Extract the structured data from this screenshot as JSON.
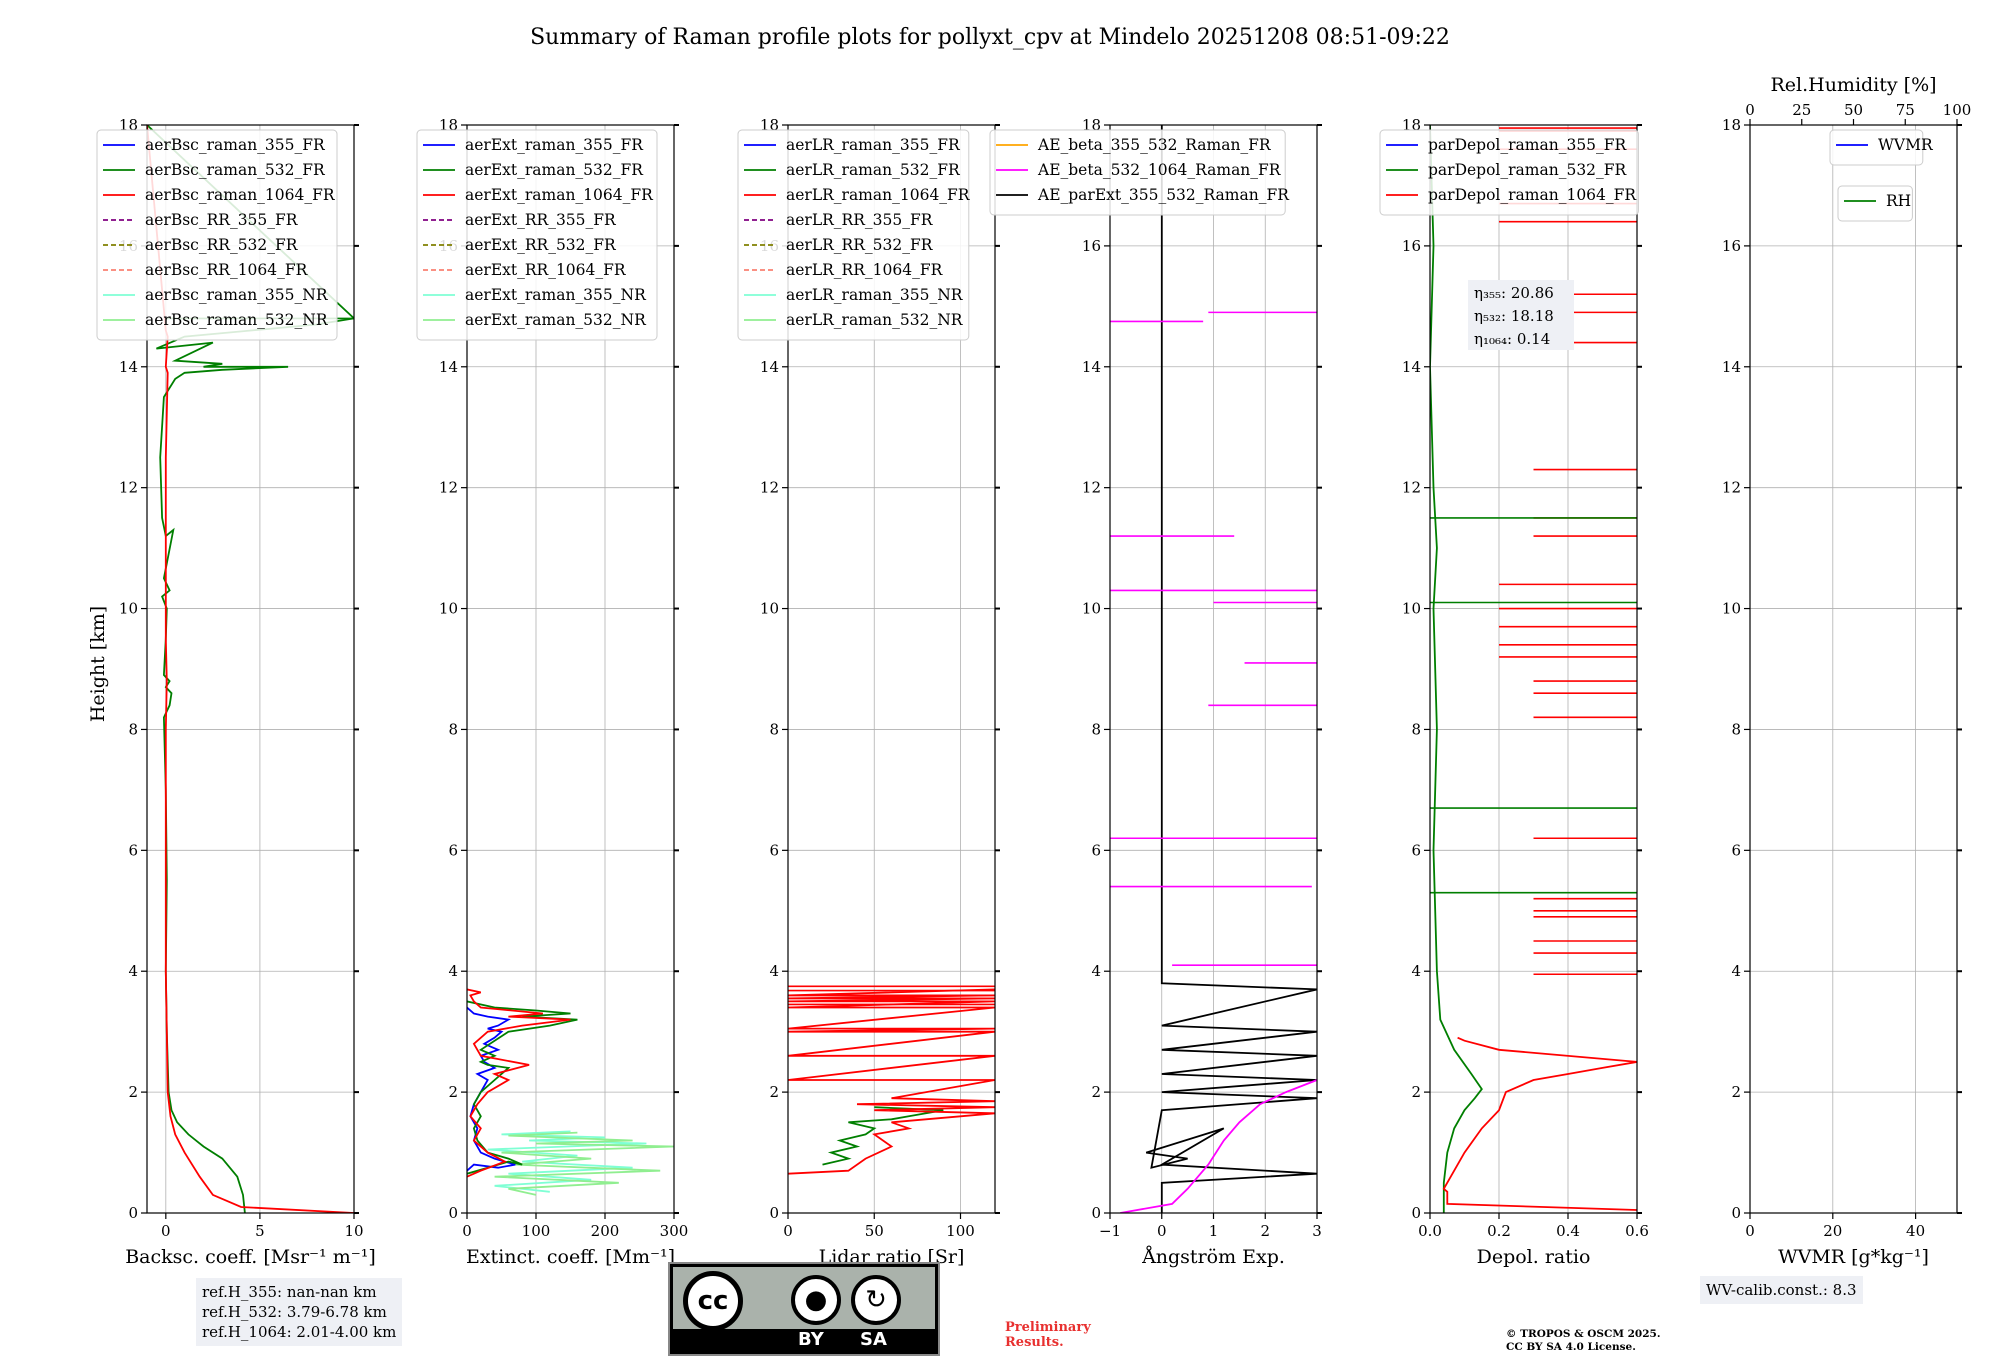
{
  "figure_title": "Summary of Raman profile plots for pollyxt_cpv at Mindelo 20251208 08:51-09:22",
  "colors": {
    "blue": "#0000ff",
    "green": "#007f00",
    "red": "#ff0000",
    "purple": "#800080",
    "olive": "#808000",
    "salmon": "#fa8072",
    "cyan": "#7fffd4",
    "lightgreen": "#90ee90",
    "orange": "#ffa500",
    "magenta": "#ff00ff",
    "black": "#000000"
  },
  "shared_y": {
    "label": "Height [km]",
    "range": [
      0,
      18
    ],
    "ticks": [
      "0",
      "2",
      "4",
      "6",
      "8",
      "10",
      "12",
      "14",
      "16",
      "18"
    ]
  },
  "chart_data": [
    {
      "id": "bsc",
      "type": "line",
      "xlabel": "Backsc. coeff. [Msr⁻¹ m⁻¹]",
      "xlim": [
        -1,
        10
      ],
      "xticks": [
        0,
        5,
        10
      ],
      "xtick_labels": [
        "0",
        "5",
        "10"
      ],
      "legend": [
        {
          "name": "aerBsc_raman_355_FR",
          "color": "blue",
          "dash": false
        },
        {
          "name": "aerBsc_raman_532_FR",
          "color": "green",
          "dash": false
        },
        {
          "name": "aerBsc_raman_1064_FR",
          "color": "red",
          "dash": false
        },
        {
          "name": "aerBsc_RR_355_FR",
          "color": "purple",
          "dash": true
        },
        {
          "name": "aerBsc_RR_532_FR",
          "color": "olive",
          "dash": true
        },
        {
          "name": "aerBsc_RR_1064_FR",
          "color": "salmon",
          "dash": true
        },
        {
          "name": "aerBsc_raman_355_NR",
          "color": "cyan",
          "dash": false
        },
        {
          "name": "aerBsc_raman_532_NR",
          "color": "lightgreen",
          "dash": false
        }
      ],
      "series": [
        {
          "name": "aerBsc_raman_532_FR",
          "color": "green",
          "x": [
            4.2,
            4.1,
            3.8,
            3.0,
            2.0,
            1.2,
            0.6,
            0.3,
            0.15,
            0.05,
            0.0,
            0.05,
            0.0,
            -0.1,
            0.2,
            0.3,
            0.0,
            0.1,
            0.2,
            -0.1,
            0.0,
            0.05,
            -0.2,
            0.2,
            -0.1,
            0.4,
            0.0,
            -0.2,
            -0.3,
            -0.1,
            0.5,
            1.0,
            3.0,
            6.5,
            2.0,
            3.0,
            0.5,
            2.5,
            -0.5,
            1.0,
            8.0,
            10.0,
            -1.0
          ],
          "y": [
            0.0,
            0.3,
            0.6,
            0.9,
            1.1,
            1.3,
            1.5,
            1.7,
            2.0,
            3.0,
            4.0,
            5.5,
            7.0,
            8.2,
            8.4,
            8.6,
            8.7,
            8.75,
            8.8,
            8.9,
            9.5,
            10.0,
            10.2,
            10.3,
            10.5,
            11.3,
            11.2,
            11.5,
            12.5,
            13.5,
            13.8,
            13.9,
            13.95,
            14.0,
            14.0,
            14.05,
            14.1,
            14.4,
            14.3,
            14.5,
            14.7,
            14.8,
            18.0
          ]
        },
        {
          "name": "aerBsc_raman_1064_FR",
          "color": "red",
          "x": [
            10.0,
            4.0,
            2.5,
            1.8,
            1.0,
            0.5,
            0.25,
            0.1,
            0.05,
            0.0,
            0.0,
            0.0,
            0.05,
            0.0,
            0.0,
            0.0,
            0.1,
            0.0,
            0.1,
            0.0,
            -1.0
          ],
          "y": [
            0.0,
            0.1,
            0.3,
            0.6,
            1.0,
            1.3,
            1.6,
            2.0,
            3.0,
            4.0,
            6.0,
            8.0,
            8.8,
            9.5,
            11.0,
            12.5,
            13.9,
            14.0,
            14.5,
            14.6,
            18.0
          ]
        }
      ]
    },
    {
      "id": "ext",
      "type": "line",
      "xlabel": "Extinct. coeff. [Mm⁻¹]",
      "xlim": [
        0,
        300
      ],
      "xticks": [
        0,
        100,
        200,
        300
      ],
      "xtick_labels": [
        "0",
        "100",
        "200",
        "300"
      ],
      "legend": [
        {
          "name": "aerExt_raman_355_FR",
          "color": "blue",
          "dash": false
        },
        {
          "name": "aerExt_raman_532_FR",
          "color": "green",
          "dash": false
        },
        {
          "name": "aerExt_raman_1064_FR",
          "color": "red",
          "dash": false
        },
        {
          "name": "aerExt_RR_355_FR",
          "color": "purple",
          "dash": true
        },
        {
          "name": "aerExt_RR_532_FR",
          "color": "olive",
          "dash": true
        },
        {
          "name": "aerExt_RR_1064_FR",
          "color": "salmon",
          "dash": true
        },
        {
          "name": "aerExt_raman_355_NR",
          "color": "cyan",
          "dash": false
        },
        {
          "name": "aerExt_raman_532_NR",
          "color": "lightgreen",
          "dash": false
        }
      ],
      "series": [
        {
          "name": "aerExt_raman_355_NR",
          "color": "cyan",
          "x": [
            120,
            40,
            180,
            60,
            240,
            80,
            160,
            30,
            260,
            90,
            200,
            50,
            150
          ],
          "y": [
            0.35,
            0.45,
            0.55,
            0.65,
            0.75,
            0.85,
            0.95,
            1.05,
            1.15,
            1.2,
            1.25,
            1.3,
            1.35
          ]
        },
        {
          "name": "aerExt_raman_532_NR",
          "color": "lightgreen",
          "x": [
            100,
            60,
            220,
            40,
            280,
            70,
            180,
            50,
            300,
            100,
            240,
            60,
            160
          ],
          "y": [
            0.3,
            0.4,
            0.5,
            0.6,
            0.7,
            0.8,
            0.9,
            1.0,
            1.1,
            1.15,
            1.2,
            1.28,
            1.33
          ]
        },
        {
          "name": "aerExt_raman_355_FR",
          "color": "blue",
          "x": [
            0,
            10,
            45,
            70,
            40,
            20,
            10,
            15,
            5,
            10,
            20,
            30,
            15,
            40,
            25,
            20,
            45,
            35,
            25,
            40,
            50,
            30,
            45,
            60,
            30,
            10,
            0
          ],
          "y": [
            0.7,
            0.8,
            0.75,
            0.8,
            0.9,
            1.0,
            1.2,
            1.4,
            1.6,
            1.8,
            2.0,
            2.2,
            2.3,
            2.4,
            2.5,
            2.6,
            2.7,
            2.75,
            2.8,
            2.9,
            3.0,
            3.05,
            3.1,
            3.2,
            3.25,
            3.3,
            3.4
          ]
        },
        {
          "name": "aerExt_raman_532_FR",
          "color": "green",
          "x": [
            0,
            30,
            60,
            80,
            60,
            30,
            15,
            10,
            20,
            10,
            20,
            40,
            60,
            30,
            20,
            40,
            20,
            60,
            120,
            160,
            80,
            150,
            100,
            40,
            0
          ],
          "y": [
            0.65,
            0.75,
            0.85,
            0.8,
            0.9,
            1.0,
            1.2,
            1.4,
            1.6,
            1.8,
            2.0,
            2.2,
            2.4,
            2.45,
            2.5,
            2.6,
            2.7,
            3.0,
            3.1,
            3.2,
            3.25,
            3.3,
            3.35,
            3.4,
            3.5
          ]
        },
        {
          "name": "aerExt_raman_1064_FR",
          "color": "red",
          "x": [
            0,
            20,
            55,
            30,
            10,
            20,
            5,
            15,
            30,
            60,
            40,
            90,
            20,
            10,
            30,
            80,
            150,
            60,
            110,
            20,
            10,
            5,
            20,
            0
          ],
          "y": [
            0.6,
            0.7,
            0.85,
            1.0,
            1.2,
            1.4,
            1.6,
            1.8,
            2.0,
            2.2,
            2.3,
            2.45,
            2.6,
            2.8,
            3.0,
            3.1,
            3.2,
            3.25,
            3.3,
            3.4,
            3.5,
            3.6,
            3.65,
            3.7
          ]
        }
      ]
    },
    {
      "id": "lr",
      "type": "line",
      "xlabel": "Lidar ratio [Sr]",
      "xlim": [
        0,
        120
      ],
      "xticks": [
        0,
        50,
        100
      ],
      "xtick_labels": [
        "0",
        "50",
        "100"
      ],
      "legend": [
        {
          "name": "aerLR_raman_355_FR",
          "color": "blue",
          "dash": false
        },
        {
          "name": "aerLR_raman_532_FR",
          "color": "green",
          "dash": false
        },
        {
          "name": "aerLR_raman_1064_FR",
          "color": "red",
          "dash": false
        },
        {
          "name": "aerLR_RR_355_FR",
          "color": "purple",
          "dash": true
        },
        {
          "name": "aerLR_RR_532_FR",
          "color": "olive",
          "dash": true
        },
        {
          "name": "aerLR_RR_1064_FR",
          "color": "salmon",
          "dash": true
        },
        {
          "name": "aerLR_raman_355_NR",
          "color": "cyan",
          "dash": false
        },
        {
          "name": "aerLR_raman_532_NR",
          "color": "lightgreen",
          "dash": false
        }
      ],
      "series": [
        {
          "name": "aerLR_raman_532_FR",
          "color": "green",
          "x": [
            20,
            35,
            25,
            40,
            30,
            45,
            50,
            35,
            60,
            70,
            80,
            90,
            50
          ],
          "y": [
            0.8,
            0.9,
            1.0,
            1.1,
            1.2,
            1.3,
            1.4,
            1.5,
            1.55,
            1.6,
            1.65,
            1.7,
            1.75
          ]
        },
        {
          "name": "aerLR_raman_1064_FR",
          "color": "red",
          "x": [
            0,
            35,
            45,
            60,
            50,
            70,
            60,
            100,
            120,
            50,
            120,
            40,
            120,
            60,
            120,
            0,
            120,
            0,
            120,
            0,
            120,
            0,
            120,
            0,
            120,
            0,
            120,
            0,
            120,
            0,
            120
          ],
          "y": [
            0.65,
            0.7,
            0.9,
            1.1,
            1.3,
            1.4,
            1.5,
            1.6,
            1.65,
            1.7,
            1.75,
            1.8,
            1.85,
            1.9,
            2.2,
            2.2,
            2.6,
            2.6,
            3.0,
            3.0,
            3.05,
            3.05,
            3.4,
            3.4,
            3.5,
            3.5,
            3.55,
            3.55,
            3.6,
            3.6,
            3.7
          ]
        }
      ]
    },
    {
      "id": "ae",
      "type": "line",
      "xlabel": "Ångström Exp.",
      "xlim": [
        -1,
        3
      ],
      "xticks": [
        -1,
        0,
        1,
        2,
        3
      ],
      "xtick_labels": [
        "−1",
        "0",
        "1",
        "2",
        "3"
      ],
      "legend": [
        {
          "name": "AE_beta_355_532_Raman_FR",
          "color": "orange",
          "dash": false
        },
        {
          "name": "AE_beta_532_1064_Raman_FR",
          "color": "magenta",
          "dash": false
        },
        {
          "name": "AE_parExt_355_532_Raman_FR",
          "color": "black",
          "dash": false
        }
      ],
      "series": [
        {
          "name": "AE_parExt_355_532_Raman_FR",
          "color": "black",
          "x": [
            0.0,
            0.0,
            3.0,
            0.0,
            1.2,
            -0.3,
            0.5,
            -0.2,
            0.0,
            3.0,
            0.0,
            3.0,
            0.0,
            3.0,
            0.0,
            3.0,
            0.0,
            3.0,
            0.0,
            0.0
          ],
          "y": [
            0.0,
            0.5,
            0.65,
            0.8,
            1.4,
            1.0,
            0.9,
            0.75,
            1.7,
            1.9,
            2.0,
            2.2,
            2.3,
            2.6,
            2.7,
            3.0,
            3.1,
            3.7,
            3.8,
            18.0
          ]
        },
        {
          "name": "AE_beta_532_1064_Raman_FR",
          "color": "magenta",
          "x": [
            -0.8,
            0.2,
            0.5,
            0.9,
            1.2,
            1.5,
            1.9,
            2.4,
            3.0
          ],
          "y": [
            0.0,
            0.15,
            0.4,
            0.8,
            1.2,
            1.5,
            1.8,
            2.0,
            2.2
          ]
        }
      ]
    },
    {
      "id": "dep",
      "type": "line",
      "xlabel": "Depol. ratio",
      "xlim": [
        0,
        0.6
      ],
      "xticks": [
        0.0,
        0.2,
        0.4,
        0.6
      ],
      "xtick_labels": [
        "0.0",
        "0.2",
        "0.4",
        "0.6"
      ],
      "legend": [
        {
          "name": "parDepol_raman_355_FR",
          "color": "blue",
          "dash": false
        },
        {
          "name": "parDepol_raman_532_FR",
          "color": "green",
          "dash": false
        },
        {
          "name": "parDepol_raman_1064_FR",
          "color": "red",
          "dash": false
        }
      ],
      "annotation": [
        "η₃₅₅: 20.86",
        "η₅₃₂: 18.18",
        "η₁₀₆₄: 0.14"
      ],
      "series": [
        {
          "name": "parDepol_raman_532_FR",
          "color": "green",
          "x": [
            0.04,
            0.04,
            0.05,
            0.07,
            0.1,
            0.13,
            0.15,
            0.12,
            0.07,
            0.03,
            0.02,
            0.01,
            0.02,
            0.01,
            0.02,
            0.01,
            0.0,
            0.01,
            0.0
          ],
          "y": [
            0.0,
            0.5,
            1.0,
            1.4,
            1.7,
            1.9,
            2.05,
            2.3,
            2.7,
            3.2,
            4.0,
            6.0,
            8.0,
            10.0,
            11.0,
            12.0,
            14.0,
            16.0,
            18.0
          ]
        },
        {
          "name": "parDepol_raman_1064_FR",
          "color": "red",
          "x": [
            0.6,
            0.05,
            0.05,
            0.04,
            0.1,
            0.15,
            0.2,
            0.22,
            0.3,
            0.4,
            0.5,
            0.6,
            0.2,
            0.1,
            0.08
          ],
          "y": [
            0.05,
            0.15,
            0.35,
            0.4,
            1.0,
            1.4,
            1.7,
            2.0,
            2.2,
            2.3,
            2.4,
            2.5,
            2.7,
            2.85,
            2.9
          ]
        }
      ]
    },
    {
      "id": "wv",
      "type": "line",
      "xlabel": "WVMR [g*kg⁻¹]",
      "xlim": [
        0,
        50
      ],
      "xticks": [
        0,
        20,
        40
      ],
      "xtick_labels": [
        "0",
        "20",
        "40"
      ],
      "top_label": "Rel.Humidity [%]",
      "top_xlim": [
        0,
        100
      ],
      "top_ticks": [
        0,
        25,
        50,
        75,
        100
      ],
      "top_tick_labels": [
        "0",
        "25",
        "50",
        "75",
        "100"
      ],
      "legend": [
        {
          "name": "WVMR",
          "color": "blue",
          "dash": false
        }
      ],
      "legend2": [
        {
          "name": "RH",
          "color": "green",
          "dash": false
        }
      ],
      "series": []
    }
  ],
  "notes": {
    "ref_h": [
      "ref.H_355: nan-nan km",
      "ref.H_532: 3.79-6.78 km",
      "ref.H_1064: 2.01-4.00 km"
    ],
    "wv_calib": "WV-calib.const.: 8.3"
  },
  "license_badge": {
    "left": "BY",
    "right": "SA",
    "cc": "cc"
  },
  "preliminary": [
    "Preliminary",
    "Results."
  ],
  "copyright": [
    "© TROPOS & OSCM 2025.",
    "CC BY SA 4.0 License."
  ]
}
